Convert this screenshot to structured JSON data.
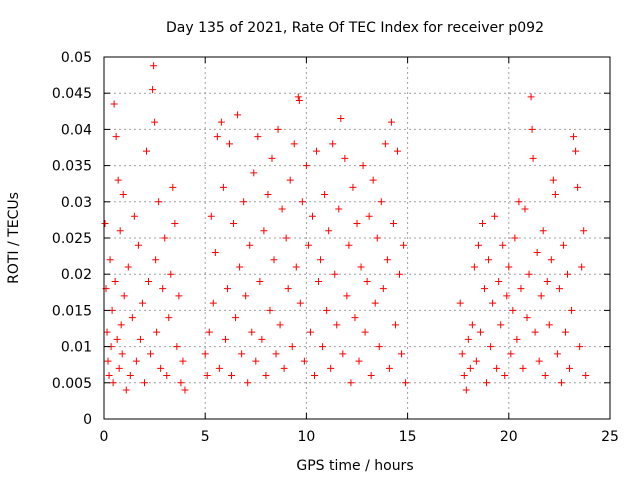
{
  "chart_data": {
    "type": "scatter",
    "title": "Day 135 of 2021, Rate Of TEC Index for receiver p092",
    "xlabel": "GPS time / hours",
    "ylabel": "ROTI / TECUs",
    "xlim": [
      0,
      25
    ],
    "ylim": [
      0,
      0.05
    ],
    "xticks": [
      0,
      5,
      10,
      15,
      20,
      25
    ],
    "xtick_labels": [
      "0",
      "5",
      "10",
      "15",
      "20",
      "25"
    ],
    "yticks": [
      0,
      0.005,
      0.01,
      0.015,
      0.02,
      0.025,
      0.03,
      0.035,
      0.04,
      0.045,
      0.05
    ],
    "ytick_labels": [
      "0",
      "0.005",
      "0.01",
      "0.015",
      "0.02",
      "0.025",
      "0.03",
      "0.035",
      "0.04",
      "0.045",
      "0.05"
    ],
    "grid": true,
    "marker": "+",
    "color": "#ff0000",
    "series": [
      {
        "name": "ROTI",
        "points": [
          [
            0.05,
            0.027
          ],
          [
            0.1,
            0.018
          ],
          [
            0.15,
            0.012
          ],
          [
            0.2,
            0.008
          ],
          [
            0.25,
            0.006
          ],
          [
            0.3,
            0.022
          ],
          [
            0.35,
            0.01
          ],
          [
            0.4,
            0.015
          ],
          [
            0.45,
            0.005
          ],
          [
            0.5,
            0.0435
          ],
          [
            0.55,
            0.019
          ],
          [
            0.6,
            0.039
          ],
          [
            0.65,
            0.011
          ],
          [
            0.7,
            0.033
          ],
          [
            0.75,
            0.007
          ],
          [
            0.8,
            0.026
          ],
          [
            0.85,
            0.013
          ],
          [
            0.9,
            0.009
          ],
          [
            0.95,
            0.031
          ],
          [
            1.0,
            0.017
          ],
          [
            1.1,
            0.004
          ],
          [
            1.2,
            0.021
          ],
          [
            1.3,
            0.006
          ],
          [
            1.4,
            0.014
          ],
          [
            1.5,
            0.028
          ],
          [
            1.6,
            0.008
          ],
          [
            1.7,
            0.024
          ],
          [
            1.8,
            0.011
          ],
          [
            1.9,
            0.016
          ],
          [
            2.0,
            0.005
          ],
          [
            2.1,
            0.037
          ],
          [
            2.2,
            0.019
          ],
          [
            2.3,
            0.009
          ],
          [
            2.4,
            0.0455
          ],
          [
            2.45,
            0.0488
          ],
          [
            2.5,
            0.041
          ],
          [
            2.55,
            0.022
          ],
          [
            2.6,
            0.012
          ],
          [
            2.7,
            0.03
          ],
          [
            2.8,
            0.007
          ],
          [
            2.9,
            0.018
          ],
          [
            3.0,
            0.025
          ],
          [
            3.1,
            0.006
          ],
          [
            3.2,
            0.014
          ],
          [
            3.3,
            0.02
          ],
          [
            3.4,
            0.032
          ],
          [
            3.5,
            0.027
          ],
          [
            3.6,
            0.01
          ],
          [
            3.7,
            0.017
          ],
          [
            3.8,
            0.005
          ],
          [
            3.9,
            0.008
          ],
          [
            4.0,
            0.004
          ],
          [
            5.0,
            0.009
          ],
          [
            5.1,
            0.006
          ],
          [
            5.2,
            0.012
          ],
          [
            5.3,
            0.028
          ],
          [
            5.4,
            0.016
          ],
          [
            5.5,
            0.023
          ],
          [
            5.6,
            0.039
          ],
          [
            5.7,
            0.007
          ],
          [
            5.8,
            0.041
          ],
          [
            5.9,
            0.032
          ],
          [
            6.0,
            0.011
          ],
          [
            6.1,
            0.018
          ],
          [
            6.2,
            0.038
          ],
          [
            6.3,
            0.006
          ],
          [
            6.4,
            0.027
          ],
          [
            6.5,
            0.014
          ],
          [
            6.6,
            0.042
          ],
          [
            6.7,
            0.021
          ],
          [
            6.8,
            0.009
          ],
          [
            6.9,
            0.03
          ],
          [
            7.0,
            0.017
          ],
          [
            7.1,
            0.005
          ],
          [
            7.2,
            0.024
          ],
          [
            7.3,
            0.012
          ],
          [
            7.4,
            0.034
          ],
          [
            7.5,
            0.008
          ],
          [
            7.6,
            0.039
          ],
          [
            7.7,
            0.019
          ],
          [
            7.8,
            0.011
          ],
          [
            7.9,
            0.026
          ],
          [
            8.0,
            0.006
          ],
          [
            8.1,
            0.031
          ],
          [
            8.2,
            0.015
          ],
          [
            8.3,
            0.036
          ],
          [
            8.4,
            0.022
          ],
          [
            8.5,
            0.009
          ],
          [
            8.6,
            0.04
          ],
          [
            8.7,
            0.013
          ],
          [
            8.8,
            0.029
          ],
          [
            8.9,
            0.007
          ],
          [
            9.0,
            0.025
          ],
          [
            9.1,
            0.018
          ],
          [
            9.2,
            0.033
          ],
          [
            9.3,
            0.01
          ],
          [
            9.4,
            0.038
          ],
          [
            9.5,
            0.021
          ],
          [
            9.6,
            0.0445
          ],
          [
            9.65,
            0.044
          ],
          [
            9.7,
            0.016
          ],
          [
            9.8,
            0.03
          ],
          [
            9.9,
            0.008
          ],
          [
            10.0,
            0.035
          ],
          [
            10.1,
            0.024
          ],
          [
            10.2,
            0.012
          ],
          [
            10.3,
            0.028
          ],
          [
            10.4,
            0.006
          ],
          [
            10.5,
            0.037
          ],
          [
            10.6,
            0.019
          ],
          [
            10.7,
            0.022
          ],
          [
            10.8,
            0.01
          ],
          [
            10.9,
            0.031
          ],
          [
            11.0,
            0.015
          ],
          [
            11.1,
            0.026
          ],
          [
            11.2,
            0.007
          ],
          [
            11.3,
            0.038
          ],
          [
            11.4,
            0.02
          ],
          [
            11.5,
            0.013
          ],
          [
            11.6,
            0.029
          ],
          [
            11.7,
            0.0415
          ],
          [
            11.8,
            0.009
          ],
          [
            11.9,
            0.036
          ],
          [
            12.0,
            0.017
          ],
          [
            12.1,
            0.024
          ],
          [
            12.2,
            0.005
          ],
          [
            12.3,
            0.032
          ],
          [
            12.4,
            0.014
          ],
          [
            12.5,
            0.027
          ],
          [
            12.6,
            0.008
          ],
          [
            12.7,
            0.021
          ],
          [
            12.8,
            0.035
          ],
          [
            12.9,
            0.012
          ],
          [
            13.0,
            0.019
          ],
          [
            13.1,
            0.028
          ],
          [
            13.2,
            0.006
          ],
          [
            13.3,
            0.033
          ],
          [
            13.4,
            0.016
          ],
          [
            13.5,
            0.025
          ],
          [
            13.6,
            0.01
          ],
          [
            13.7,
            0.03
          ],
          [
            13.8,
            0.018
          ],
          [
            13.9,
            0.038
          ],
          [
            14.0,
            0.022
          ],
          [
            14.1,
            0.007
          ],
          [
            14.2,
            0.041
          ],
          [
            14.3,
            0.027
          ],
          [
            14.4,
            0.013
          ],
          [
            14.5,
            0.037
          ],
          [
            14.6,
            0.02
          ],
          [
            14.7,
            0.009
          ],
          [
            14.8,
            0.024
          ],
          [
            14.9,
            0.005
          ],
          [
            17.6,
            0.016
          ],
          [
            17.7,
            0.009
          ],
          [
            17.8,
            0.006
          ],
          [
            17.9,
            0.004
          ],
          [
            18.0,
            0.011
          ],
          [
            18.1,
            0.007
          ],
          [
            18.2,
            0.013
          ],
          [
            18.3,
            0.021
          ],
          [
            18.4,
            0.008
          ],
          [
            18.5,
            0.024
          ],
          [
            18.6,
            0.012
          ],
          [
            18.7,
            0.027
          ],
          [
            18.8,
            0.018
          ],
          [
            18.9,
            0.005
          ],
          [
            19.0,
            0.022
          ],
          [
            19.1,
            0.01
          ],
          [
            19.2,
            0.016
          ],
          [
            19.3,
            0.028
          ],
          [
            19.4,
            0.007
          ],
          [
            19.5,
            0.019
          ],
          [
            19.6,
            0.013
          ],
          [
            19.7,
            0.024
          ],
          [
            19.8,
            0.006
          ],
          [
            19.9,
            0.017
          ],
          [
            20.0,
            0.021
          ],
          [
            20.1,
            0.009
          ],
          [
            20.2,
            0.015
          ],
          [
            20.3,
            0.025
          ],
          [
            20.4,
            0.011
          ],
          [
            20.5,
            0.03
          ],
          [
            20.6,
            0.018
          ],
          [
            20.7,
            0.007
          ],
          [
            20.8,
            0.029
          ],
          [
            20.9,
            0.014
          ],
          [
            21.0,
            0.02
          ],
          [
            21.1,
            0.0445
          ],
          [
            21.15,
            0.04
          ],
          [
            21.2,
            0.036
          ],
          [
            21.3,
            0.012
          ],
          [
            21.4,
            0.023
          ],
          [
            21.5,
            0.008
          ],
          [
            21.6,
            0.017
          ],
          [
            21.7,
            0.026
          ],
          [
            21.8,
            0.006
          ],
          [
            21.9,
            0.019
          ],
          [
            22.0,
            0.013
          ],
          [
            22.1,
            0.022
          ],
          [
            22.2,
            0.033
          ],
          [
            22.3,
            0.031
          ],
          [
            22.4,
            0.009
          ],
          [
            22.5,
            0.018
          ],
          [
            22.6,
            0.005
          ],
          [
            22.7,
            0.024
          ],
          [
            22.8,
            0.012
          ],
          [
            22.9,
            0.02
          ],
          [
            23.0,
            0.007
          ],
          [
            23.1,
            0.015
          ],
          [
            23.2,
            0.039
          ],
          [
            23.3,
            0.037
          ],
          [
            23.4,
            0.032
          ],
          [
            23.5,
            0.01
          ],
          [
            23.6,
            0.021
          ],
          [
            23.7,
            0.026
          ],
          [
            23.8,
            0.006
          ]
        ]
      }
    ]
  }
}
